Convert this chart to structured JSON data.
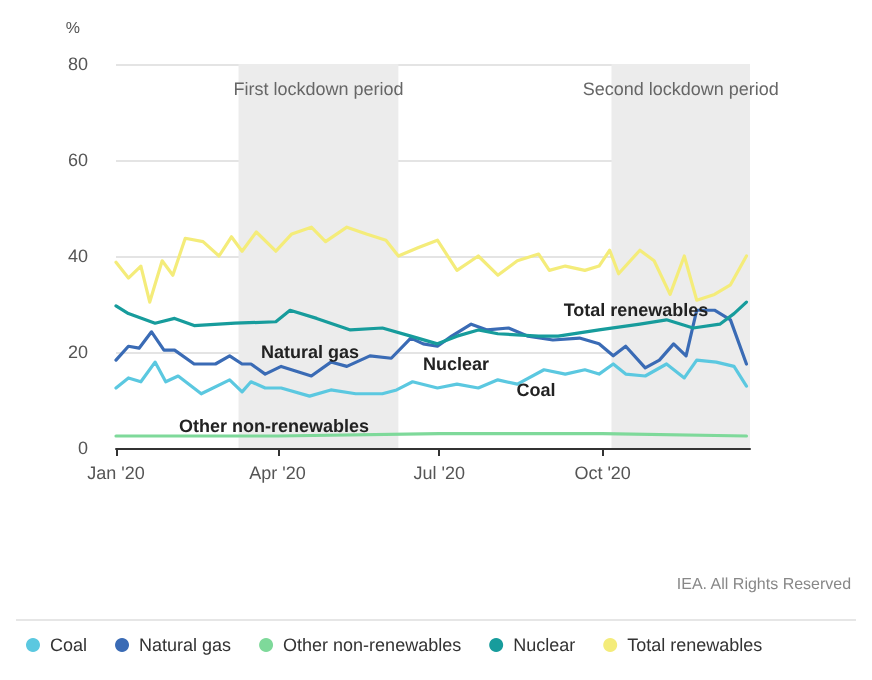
{
  "chart_data": {
    "type": "line",
    "ylabel": "%",
    "legend": "bottom",
    "grid": "y",
    "marker": "none",
    "line_style": "solid",
    "xlim": [
      "2020-01-01",
      "2020-12-23"
    ],
    "xticks": [
      {
        "value": "2020-01-01",
        "label": "Jan '20"
      },
      {
        "value": "2020-04-01",
        "label": "Apr '20"
      },
      {
        "value": "2020-07-01",
        "label": "Jul '20"
      },
      {
        "value": "2020-10-01",
        "label": "Oct '20"
      }
    ],
    "ylim": [
      0,
      80
    ],
    "yticks": [
      0,
      20,
      40,
      60,
      80
    ],
    "bands": [
      {
        "axis": "x",
        "from": "2020-03-10",
        "to": "2020-06-08",
        "label": "First lockdown period",
        "color": "#ececec"
      },
      {
        "axis": "x",
        "from": "2020-10-06",
        "to": "2020-12-23",
        "label": "Second lockdown period",
        "color": "#ececec"
      }
    ],
    "series": [
      {
        "name": "Coal",
        "color": "#5bc8e0",
        "x": [
          "2020-01-01",
          "2020-01-08",
          "2020-01-15",
          "2020-01-23",
          "2020-01-29",
          "2020-02-05",
          "2020-02-18",
          "2020-03-05",
          "2020-03-12",
          "2020-03-17",
          "2020-03-25",
          "2020-04-03",
          "2020-04-19",
          "2020-05-01",
          "2020-05-15",
          "2020-05-30",
          "2020-06-07",
          "2020-06-16",
          "2020-06-30",
          "2020-07-11",
          "2020-07-23",
          "2020-08-03",
          "2020-08-14",
          "2020-08-29",
          "2020-09-10",
          "2020-09-21",
          "2020-09-29",
          "2020-10-07",
          "2020-10-14",
          "2020-10-25",
          "2020-11-06",
          "2020-11-16",
          "2020-11-23",
          "2020-12-04",
          "2020-12-14",
          "2020-12-21"
        ],
        "values": [
          12.5,
          14.6,
          13.8,
          17.9,
          13.8,
          15,
          11.3,
          14.2,
          11.7,
          13.8,
          12.5,
          12.5,
          10.8,
          12.1,
          11.3,
          11.3,
          12.1,
          13.8,
          12.5,
          13.3,
          12.5,
          14.2,
          13.3,
          16.3,
          15.4,
          16.3,
          15.4,
          17.5,
          15.4,
          15,
          17.5,
          14.6,
          18.3,
          17.9,
          17,
          12.9
        ]
      },
      {
        "name": "Natural gas",
        "color": "#3a6bb5",
        "x": [
          "2020-01-01",
          "2020-01-08",
          "2020-01-14",
          "2020-01-21",
          "2020-01-28",
          "2020-02-03",
          "2020-02-14",
          "2020-02-26",
          "2020-03-05",
          "2020-03-12",
          "2020-03-17",
          "2020-03-25",
          "2020-04-03",
          "2020-04-20",
          "2020-05-01",
          "2020-05-10",
          "2020-05-23",
          "2020-06-04",
          "2020-06-15",
          "2020-06-22",
          "2020-06-30",
          "2020-07-08",
          "2020-07-19",
          "2020-07-28",
          "2020-08-09",
          "2020-08-20",
          "2020-09-03",
          "2020-09-18",
          "2020-09-29",
          "2020-10-07",
          "2020-10-14",
          "2020-10-25",
          "2020-11-02",
          "2020-11-10",
          "2020-11-17",
          "2020-11-23",
          "2020-12-03",
          "2020-12-12",
          "2020-12-21"
        ],
        "values": [
          18.3,
          21.2,
          20.8,
          24.2,
          20.4,
          20.4,
          17.5,
          17.5,
          19.2,
          17.5,
          17.5,
          15.4,
          17,
          15,
          17.9,
          17,
          19.2,
          18.7,
          22.9,
          21.7,
          21.2,
          23.3,
          25.8,
          24.6,
          25,
          23.3,
          22.5,
          22.9,
          21.7,
          19.2,
          21.2,
          16.7,
          18.3,
          21.7,
          19.2,
          28.7,
          28.7,
          26.7,
          17.5
        ]
      },
      {
        "name": "Other non-renewables",
        "color": "#7ed99a",
        "x": [
          "2020-01-01",
          "2020-04-01",
          "2020-07-01",
          "2020-10-01",
          "2020-12-21"
        ],
        "values": [
          2.5,
          2.5,
          3,
          3,
          2.5
        ]
      },
      {
        "name": "Nuclear",
        "color": "#179c9c",
        "x": [
          "2020-01-01",
          "2020-01-08",
          "2020-01-23",
          "2020-02-03",
          "2020-02-14",
          "2020-03-08",
          "2020-03-31",
          "2020-04-08",
          "2020-04-23",
          "2020-05-12",
          "2020-05-30",
          "2020-06-15",
          "2020-06-30",
          "2020-07-11",
          "2020-07-23",
          "2020-08-03",
          "2020-08-26",
          "2020-09-06",
          "2020-09-29",
          "2020-10-22",
          "2020-11-06",
          "2020-11-21",
          "2020-12-06",
          "2020-12-14",
          "2020-12-21"
        ],
        "values": [
          29.6,
          28,
          26,
          27,
          25.5,
          26,
          26.3,
          28.7,
          27,
          24.6,
          25,
          23.3,
          21.7,
          23.3,
          24.6,
          23.8,
          23.3,
          23.3,
          24.6,
          25.8,
          26.7,
          25,
          25.8,
          28,
          30.4
        ]
      },
      {
        "name": "Total renewables",
        "color": "#f4ec7a",
        "x": [
          "2020-01-01",
          "2020-01-08",
          "2020-01-15",
          "2020-01-20",
          "2020-01-27",
          "2020-02-02",
          "2020-02-09",
          "2020-02-19",
          "2020-02-28",
          "2020-03-06",
          "2020-03-12",
          "2020-03-20",
          "2020-03-31",
          "2020-04-09",
          "2020-04-20",
          "2020-04-28",
          "2020-05-10",
          "2020-05-21",
          "2020-06-01",
          "2020-06-08",
          "2020-06-19",
          "2020-06-30",
          "2020-07-11",
          "2020-07-23",
          "2020-08-03",
          "2020-08-14",
          "2020-08-26",
          "2020-09-01",
          "2020-09-10",
          "2020-09-21",
          "2020-09-29",
          "2020-10-05",
          "2020-10-10",
          "2020-10-22",
          "2020-10-30",
          "2020-11-08",
          "2020-11-16",
          "2020-11-23",
          "2020-12-03",
          "2020-12-12",
          "2020-12-21"
        ],
        "values": [
          38.7,
          35.4,
          37.9,
          30.4,
          39,
          36,
          43.7,
          43,
          40,
          44,
          41,
          45,
          41,
          44.6,
          46,
          43,
          46,
          44.6,
          43.3,
          40,
          41.7,
          43.3,
          37,
          40,
          36,
          39,
          40.4,
          37,
          37.9,
          37,
          37.9,
          41.2,
          36.3,
          41.2,
          39,
          32,
          40,
          30.8,
          32,
          34,
          40
        ]
      }
    ],
    "annotations": [
      "Natural gas",
      "Nuclear",
      "Coal",
      "Total renewables",
      "Other non-renewables",
      "IEA. All Rights Reserved"
    ]
  }
}
